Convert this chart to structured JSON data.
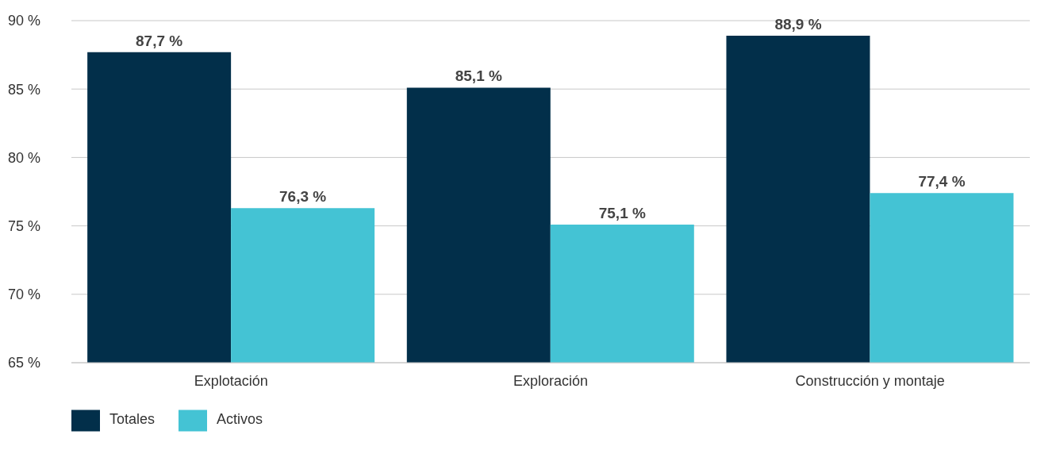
{
  "chart_data": {
    "type": "bar",
    "categories": [
      "Explotación",
      "Exploración",
      "Construcción y montaje"
    ],
    "series": [
      {
        "name": "Totales",
        "color": "#022f4a",
        "values": [
          87.7,
          85.1,
          88.9
        ],
        "value_labels": [
          "87,7 %",
          "85,1 %",
          "88,9 %"
        ]
      },
      {
        "name": "Activos",
        "color": "#44c3d4",
        "values": [
          76.3,
          75.1,
          77.4
        ],
        "value_labels": [
          "76,3 %",
          "75,1 %",
          "77,4 %"
        ]
      }
    ],
    "ylim": [
      65,
      90
    ],
    "yticks": [
      {
        "value": 65,
        "label": "65 %"
      },
      {
        "value": 70,
        "label": "70 %"
      },
      {
        "value": 75,
        "label": "75 %"
      },
      {
        "value": 80,
        "label": "80 %"
      },
      {
        "value": 85,
        "label": "85 %"
      },
      {
        "value": 90,
        "label": "90 %"
      }
    ],
    "grid": "y",
    "legend": "bottom left"
  }
}
